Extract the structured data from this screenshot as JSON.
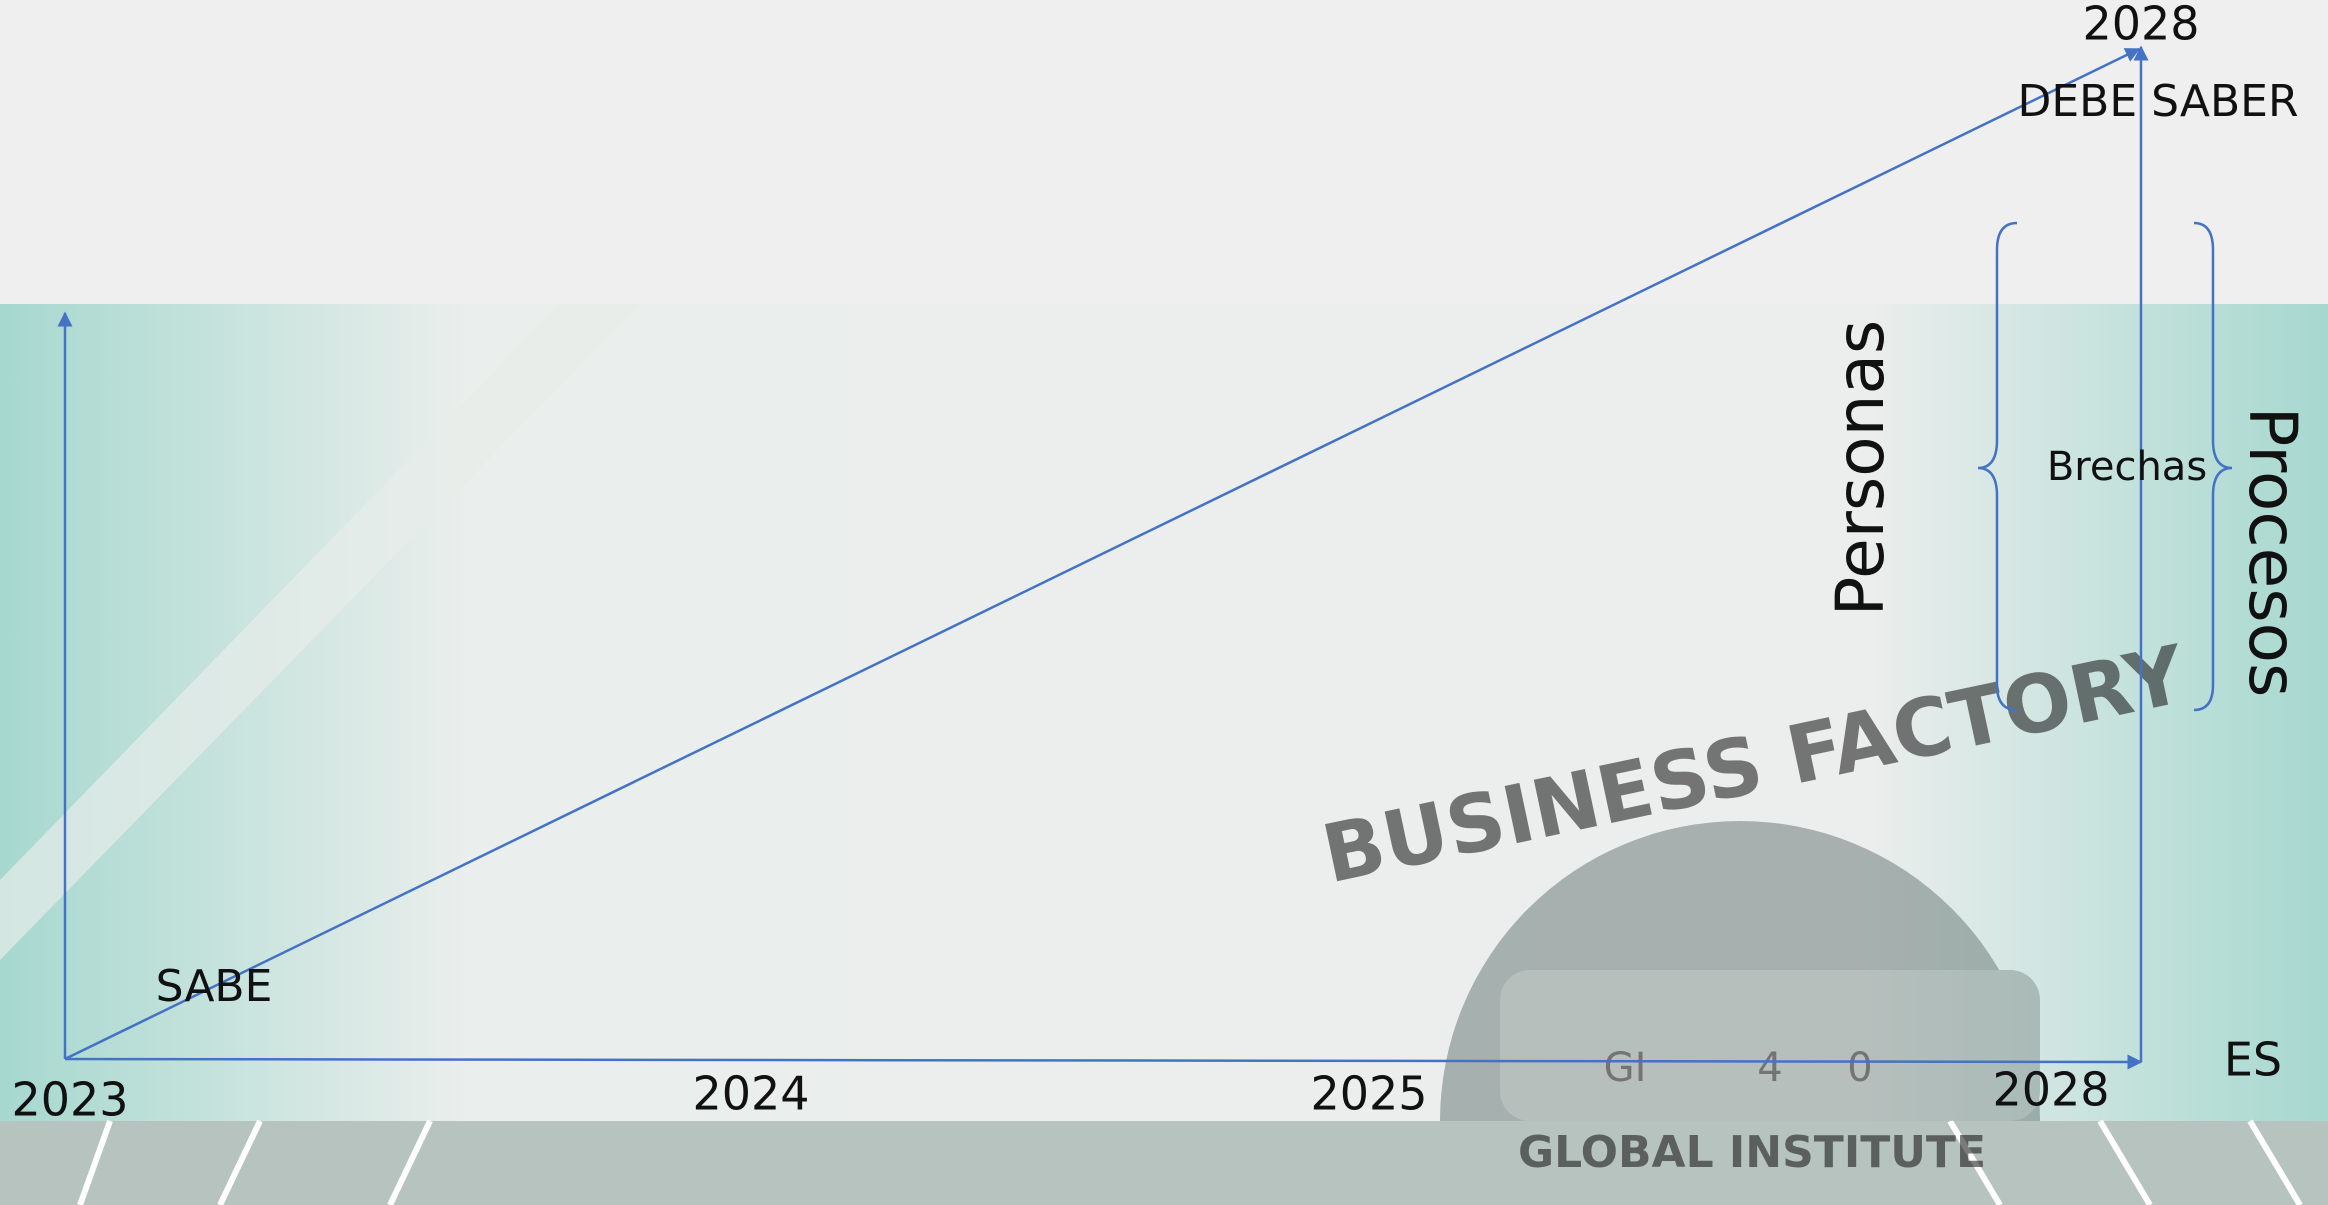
{
  "axes": {
    "origin_year": "2023",
    "years": [
      "2024",
      "2025",
      "2028"
    ],
    "x_end": "ES",
    "top_year": "2028"
  },
  "labels": {
    "start": "SABE",
    "goal": "DEBE SABER",
    "left_side": "Personas",
    "gap": "Brechas",
    "right_side": "Procesos"
  },
  "logo": {
    "title": "BUSINESS FACTORY",
    "subtitle": "GLOBAL INSTITUTE",
    "badge": [
      "GI",
      "4",
      "0"
    ]
  }
}
